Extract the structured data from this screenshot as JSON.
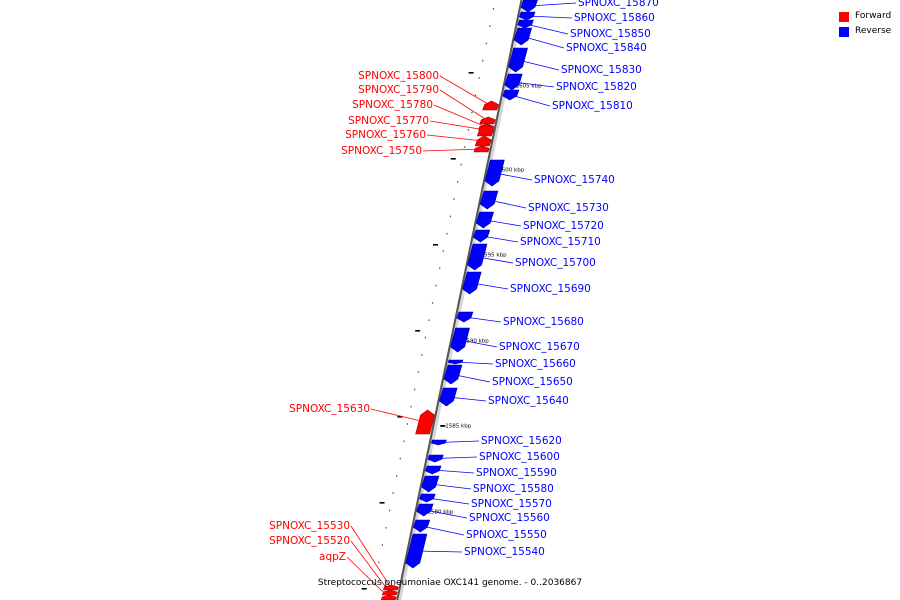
{
  "legend": {
    "forward_label": "Forward",
    "reverse_label": "Reverse",
    "forward_color": "#ff0000",
    "reverse_color": "#0000ff"
  },
  "caption": "Streptococcus pneumoniae OXC141 genome. - 0..2036867",
  "axis": {
    "unit": "kbp",
    "ticks": [
      "1605 kbp",
      "1600 kbp",
      "1595 kbp",
      "1590 kbp",
      "1585 kbp",
      "1580 kbp"
    ]
  },
  "genes": [
    {
      "name": "SPNOXC_15870",
      "strand": "reverse"
    },
    {
      "name": "SPNOXC_15860",
      "strand": "reverse"
    },
    {
      "name": "SPNOXC_15850",
      "strand": "reverse"
    },
    {
      "name": "SPNOXC_15840",
      "strand": "reverse"
    },
    {
      "name": "SPNOXC_15830",
      "strand": "reverse"
    },
    {
      "name": "SPNOXC_15820",
      "strand": "reverse"
    },
    {
      "name": "SPNOXC_15810",
      "strand": "reverse"
    },
    {
      "name": "SPNOXC_15800",
      "strand": "forward"
    },
    {
      "name": "SPNOXC_15790",
      "strand": "forward"
    },
    {
      "name": "SPNOXC_15780",
      "strand": "forward"
    },
    {
      "name": "SPNOXC_15770",
      "strand": "forward"
    },
    {
      "name": "SPNOXC_15760",
      "strand": "forward"
    },
    {
      "name": "SPNOXC_15750",
      "strand": "forward"
    },
    {
      "name": "SPNOXC_15740",
      "strand": "reverse"
    },
    {
      "name": "SPNOXC_15730",
      "strand": "reverse"
    },
    {
      "name": "SPNOXC_15720",
      "strand": "reverse"
    },
    {
      "name": "SPNOXC_15710",
      "strand": "reverse"
    },
    {
      "name": "SPNOXC_15700",
      "strand": "reverse"
    },
    {
      "name": "SPNOXC_15690",
      "strand": "reverse"
    },
    {
      "name": "SPNOXC_15680",
      "strand": "reverse"
    },
    {
      "name": "SPNOXC_15670",
      "strand": "reverse"
    },
    {
      "name": "SPNOXC_15660",
      "strand": "reverse"
    },
    {
      "name": "SPNOXC_15650",
      "strand": "reverse"
    },
    {
      "name": "SPNOXC_15640",
      "strand": "reverse"
    },
    {
      "name": "SPNOXC_15630",
      "strand": "forward"
    },
    {
      "name": "SPNOXC_15620",
      "strand": "reverse"
    },
    {
      "name": "SPNOXC_15600",
      "strand": "reverse"
    },
    {
      "name": "SPNOXC_15590",
      "strand": "reverse"
    },
    {
      "name": "SPNOXC_15580",
      "strand": "reverse"
    },
    {
      "name": "SPNOXC_15570",
      "strand": "reverse"
    },
    {
      "name": "SPNOXC_15560",
      "strand": "reverse"
    },
    {
      "name": "SPNOXC_15550",
      "strand": "reverse"
    },
    {
      "name": "SPNOXC_15540",
      "strand": "reverse"
    },
    {
      "name": "SPNOXC_15530",
      "strand": "forward"
    },
    {
      "name": "SPNOXC_15520",
      "strand": "forward"
    },
    {
      "name": "aqpZ",
      "strand": "forward"
    }
  ]
}
